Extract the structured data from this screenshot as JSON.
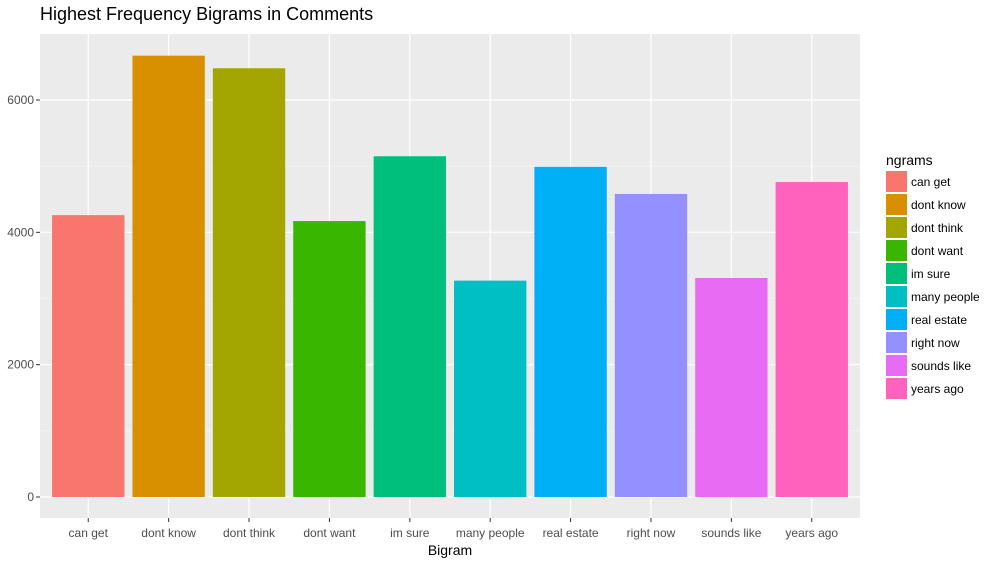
{
  "chart_data": {
    "type": "bar",
    "title": "Highest Frequency Bigrams in Comments",
    "xlabel": "Bigram",
    "ylabel": "",
    "categories": [
      "can get",
      "dont know",
      "dont think",
      "dont want",
      "im sure",
      "many people",
      "real estate",
      "right now",
      "sounds like",
      "years ago"
    ],
    "values": [
      4260,
      6670,
      6480,
      4170,
      5150,
      3270,
      4990,
      4580,
      3310,
      4760
    ],
    "ylim": [
      0,
      7000
    ],
    "yticks": [
      0,
      2000,
      4000,
      6000
    ],
    "colors": [
      "#F8766D",
      "#D89000",
      "#A3A500",
      "#39B600",
      "#00BF7D",
      "#00BFC4",
      "#00B0F6",
      "#9590FF",
      "#E76BF3",
      "#FF62BC"
    ],
    "grid": true,
    "legend": {
      "title": "ngrams",
      "placement": "right",
      "entries": [
        "can get",
        "dont know",
        "dont think",
        "dont want",
        "im sure",
        "many people",
        "real estate",
        "right now",
        "sounds like",
        "years ago"
      ]
    }
  }
}
